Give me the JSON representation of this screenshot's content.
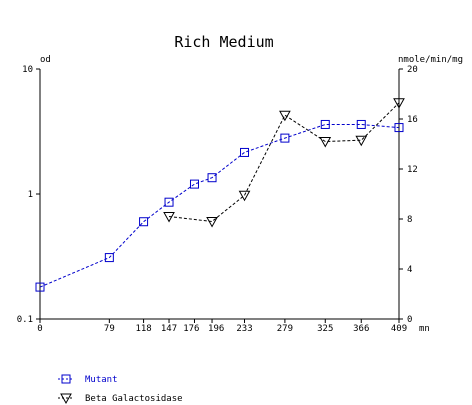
{
  "chart_data": {
    "type": "line",
    "title": "Rich Medium",
    "left_axis_label": "od",
    "right_axis_label": "nmole/min/mg",
    "x_unit_label": "mn",
    "x": [
      0,
      79,
      118,
      147,
      176,
      196,
      233,
      279,
      325,
      366,
      409
    ],
    "x_tick_labels": [
      "0",
      "79",
      "118",
      "147",
      "176",
      "196",
      "233",
      "279",
      "325",
      "366",
      "409"
    ],
    "left_axis": {
      "scale": "log",
      "min": 0.1,
      "max": 10,
      "ticks": [
        0.1,
        1,
        10
      ],
      "tick_labels": [
        "0.1",
        "1",
        "10"
      ]
    },
    "right_axis": {
      "scale": "linear",
      "min": 0,
      "max": 20,
      "ticks": [
        0,
        4,
        8,
        12,
        16,
        20
      ],
      "tick_labels": [
        "0",
        "4",
        "8",
        "12",
        "16",
        "20"
      ]
    },
    "series": [
      {
        "name": "Mutant",
        "axis": "left",
        "marker": "square",
        "color": "#0000cc",
        "x": [
          0,
          79,
          118,
          147,
          176,
          196,
          233,
          279,
          325,
          366,
          409
        ],
        "y": [
          0.18,
          0.31,
          0.6,
          0.86,
          1.2,
          1.35,
          2.15,
          2.8,
          3.6,
          3.6,
          3.4
        ]
      },
      {
        "name": "Beta Galactosidase",
        "axis": "right",
        "marker": "triangle-down",
        "color": "#000000",
        "x": [
          147,
          196,
          233,
          279,
          325,
          366,
          409
        ],
        "y": [
          8.2,
          7.8,
          9.9,
          16.3,
          14.2,
          14.3,
          17.3
        ]
      }
    ],
    "legend_position": "bottom-left",
    "grid": false
  }
}
